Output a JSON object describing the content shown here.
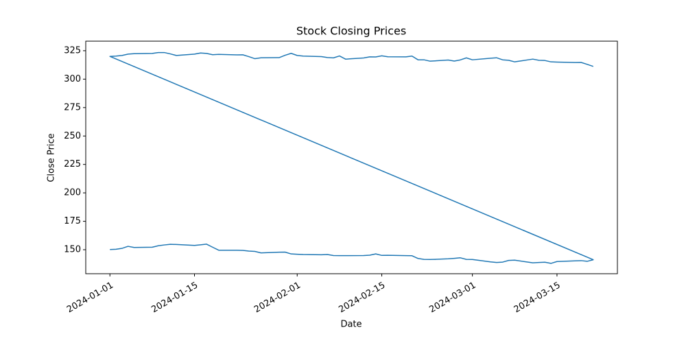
{
  "chart_data": {
    "type": "line",
    "title": "Stock Closing Prices",
    "x_label": "Date",
    "y_label": "Close Price",
    "x": [
      "2024-01-01",
      "2024-01-02",
      "2024-01-03",
      "2024-01-04",
      "2024-01-05",
      "2024-01-08",
      "2024-01-09",
      "2024-01-10",
      "2024-01-11",
      "2024-01-12",
      "2024-01-15",
      "2024-01-16",
      "2024-01-17",
      "2024-01-18",
      "2024-01-19",
      "2024-01-22",
      "2024-01-23",
      "2024-01-24",
      "2024-01-25",
      "2024-01-26",
      "2024-01-29",
      "2024-01-30",
      "2024-01-31",
      "2024-02-01",
      "2024-02-02",
      "2024-02-05",
      "2024-02-06",
      "2024-02-07",
      "2024-02-08",
      "2024-02-09",
      "2024-02-12",
      "2024-02-13",
      "2024-02-14",
      "2024-02-15",
      "2024-02-16",
      "2024-02-19",
      "2024-02-20",
      "2024-02-21",
      "2024-02-22",
      "2024-02-23",
      "2024-02-26",
      "2024-02-27",
      "2024-02-28",
      "2024-02-29",
      "2024-03-01",
      "2024-03-04",
      "2024-03-05",
      "2024-03-06",
      "2024-03-07",
      "2024-03-08",
      "2024-03-11",
      "2024-03-12",
      "2024-03-13",
      "2024-03-14",
      "2024-03-15",
      "2024-03-18",
      "2024-03-19",
      "2024-03-20",
      "2024-03-21",
      "2024-01-01",
      "2024-01-02",
      "2024-01-03",
      "2024-01-04",
      "2024-01-05",
      "2024-01-08",
      "2024-01-09",
      "2024-01-10",
      "2024-01-11",
      "2024-01-12",
      "2024-01-15",
      "2024-01-16",
      "2024-01-17",
      "2024-01-18",
      "2024-01-19",
      "2024-01-22",
      "2024-01-23",
      "2024-01-24",
      "2024-01-25",
      "2024-01-26",
      "2024-01-29",
      "2024-01-30",
      "2024-01-31",
      "2024-02-01",
      "2024-02-02",
      "2024-02-05",
      "2024-02-06",
      "2024-02-07",
      "2024-02-08",
      "2024-02-09",
      "2024-02-12",
      "2024-02-13",
      "2024-02-14",
      "2024-02-15",
      "2024-02-16",
      "2024-02-19",
      "2024-02-20",
      "2024-02-21",
      "2024-02-22",
      "2024-02-23",
      "2024-02-26",
      "2024-02-27",
      "2024-02-28",
      "2024-02-29",
      "2024-03-01",
      "2024-03-04",
      "2024-03-05",
      "2024-03-06",
      "2024-03-07",
      "2024-03-08",
      "2024-03-11",
      "2024-03-12",
      "2024-03-13",
      "2024-03-14",
      "2024-03-15",
      "2024-03-18",
      "2024-03-19",
      "2024-03-20",
      "2024-03-21"
    ],
    "values": [
      150.2,
      150.4,
      151.2,
      153.0,
      152.0,
      152.2,
      153.5,
      154.2,
      154.8,
      154.6,
      153.8,
      154.3,
      154.9,
      152.2,
      149.6,
      149.6,
      149.4,
      148.8,
      148.5,
      147.2,
      147.8,
      147.9,
      146.3,
      146.0,
      145.8,
      145.6,
      145.8,
      144.9,
      144.8,
      144.8,
      144.9,
      145.2,
      146.3,
      145.0,
      145.1,
      144.8,
      144.7,
      142.3,
      141.5,
      141.4,
      142.0,
      142.4,
      142.9,
      141.5,
      141.4,
      139.3,
      138.8,
      139.1,
      140.6,
      140.8,
      138.5,
      138.8,
      139.0,
      138.0,
      139.6,
      140.2,
      140.4,
      139.8,
      141.2,
      320.0,
      320.3,
      320.8,
      322.0,
      322.4,
      322.6,
      323.4,
      323.4,
      322.2,
      320.8,
      322.0,
      323.0,
      322.6,
      321.5,
      321.8,
      321.3,
      321.4,
      319.8,
      318.0,
      318.8,
      318.9,
      321.0,
      322.7,
      320.8,
      320.3,
      319.8,
      319.0,
      318.7,
      320.4,
      317.6,
      318.6,
      319.6,
      319.5,
      320.5,
      319.7,
      319.6,
      320.3,
      317.0,
      317.0,
      315.8,
      316.8,
      315.9,
      316.9,
      318.7,
      317.0,
      318.4,
      318.8,
      317.0,
      316.6,
      315.2,
      317.6,
      316.6,
      316.4,
      315.2,
      315.0,
      314.6,
      314.7,
      313.0,
      311.2
    ],
    "color": "#1f77b4",
    "xlim": [
      "2023-12-28",
      "2024-03-25"
    ],
    "xticks": [
      "2024-01-01",
      "2024-01-15",
      "2024-02-01",
      "2024-02-15",
      "2024-03-01",
      "2024-03-15"
    ],
    "ylim": [
      128.9,
      333.4
    ],
    "yticks": [
      150,
      175,
      200,
      225,
      250,
      275,
      300,
      325
    ]
  }
}
